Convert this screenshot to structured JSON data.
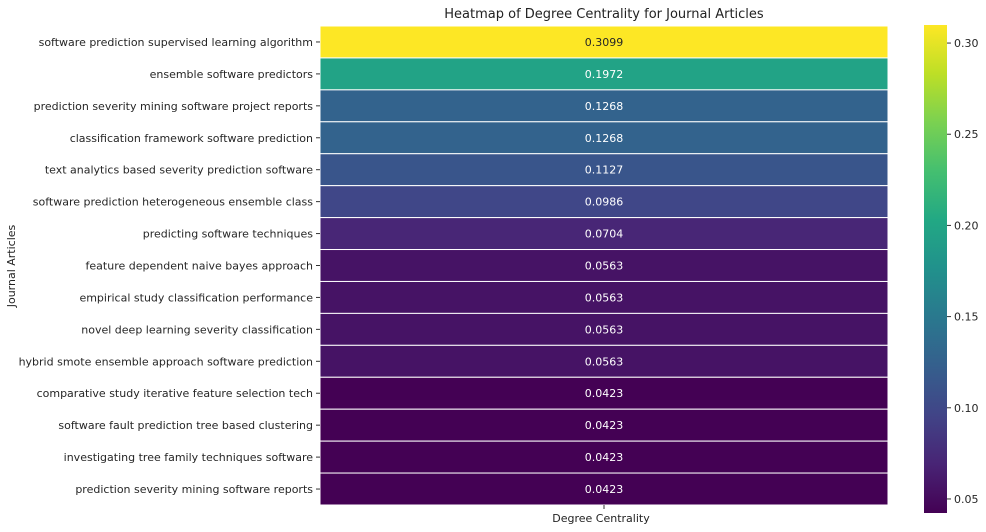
{
  "chart_data": {
    "type": "heatmap",
    "title": "Heatmap of Degree Centrality for Journal Articles",
    "xlabel": "Degree Centrality",
    "ylabel": "Journal Articles",
    "column": "Degree Centrality",
    "rows": [
      "software prediction supervised learning algorithm",
      "ensemble software predictors",
      "prediction severity mining software project reports",
      "classification framework software prediction",
      "text analytics based severity prediction software",
      "software prediction heterogeneous ensemble class",
      "predicting software techniques",
      "feature dependent naive bayes approach",
      "empirical study classification performance",
      "novel deep learning severity classification",
      "hybrid smote ensemble approach software prediction",
      "comparative study iterative feature selection tech",
      "software fault prediction tree based clustering",
      "investigating tree family techniques software",
      "prediction severity mining software reports"
    ],
    "values": [
      0.3099,
      0.1972,
      0.1268,
      0.1268,
      0.1127,
      0.0986,
      0.0704,
      0.0563,
      0.0563,
      0.0563,
      0.0563,
      0.0423,
      0.0423,
      0.0423,
      0.0423
    ],
    "value_labels": [
      "0.3099",
      "0.1972",
      "0.1268",
      "0.1268",
      "0.1127",
      "0.0986",
      "0.0704",
      "0.0563",
      "0.0563",
      "0.0563",
      "0.0563",
      "0.0423",
      "0.0423",
      "0.0423",
      "0.0423"
    ],
    "colormap": "viridis",
    "color_range": [
      0.0423,
      0.3099
    ],
    "colorbar_ticks": [
      0.3,
      0.25,
      0.2,
      0.15,
      0.1,
      0.05
    ],
    "colorbar_tick_labels": [
      "0.30",
      "0.25",
      "0.20",
      "0.15",
      "0.10",
      "0.05"
    ]
  }
}
